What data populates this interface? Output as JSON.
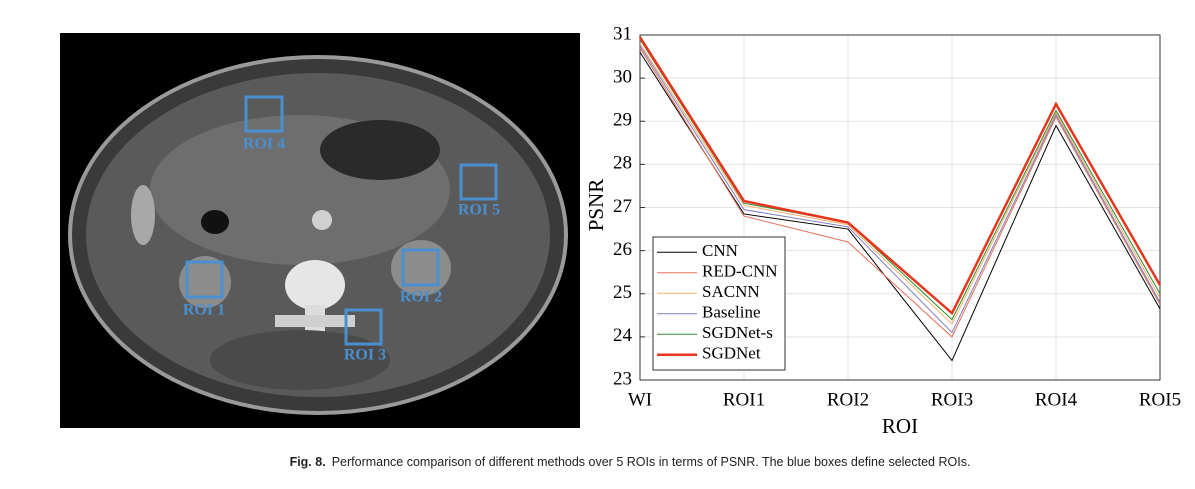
{
  "image": {
    "roi_labels": [
      "ROI 1",
      "ROI 2",
      "ROI 3",
      "ROI 4",
      "ROI 5"
    ]
  },
  "chart_data": {
    "type": "line",
    "xlabel": "ROI",
    "ylabel": "PSNR",
    "categories": [
      "WI",
      "ROI1",
      "ROI2",
      "ROI3",
      "ROI4",
      "ROI5"
    ],
    "series": [
      {
        "name": "CNN",
        "color": "#000000",
        "values": [
          30.6,
          26.85,
          26.5,
          23.45,
          28.9,
          24.65
        ]
      },
      {
        "name": "RED-CNN",
        "color": "#e8705a",
        "values": [
          30.7,
          26.8,
          26.2,
          24.0,
          29.1,
          24.75
        ]
      },
      {
        "name": "SACNN",
        "color": "#f5b06a",
        "values": [
          30.8,
          27.05,
          26.6,
          24.3,
          29.2,
          24.9
        ]
      },
      {
        "name": "Baseline",
        "color": "#7b7bc8",
        "values": [
          30.75,
          26.95,
          26.55,
          24.1,
          29.15,
          24.8
        ]
      },
      {
        "name": "SGDNet-s",
        "color": "#2e8b2e",
        "values": [
          30.9,
          27.1,
          26.65,
          24.4,
          29.25,
          25.0
        ]
      },
      {
        "name": "SGDNet",
        "color": "#e8361e",
        "values": [
          30.95,
          27.15,
          26.65,
          24.55,
          29.4,
          25.2
        ]
      }
    ],
    "ylim": [
      23,
      31
    ],
    "yticks": [
      23,
      24,
      25,
      26,
      27,
      28,
      29,
      30,
      31
    ],
    "grid": true,
    "legend": "lower left"
  },
  "caption": {
    "label": "Fig. 8.",
    "text": "Performance comparison of different methods over 5 ROIs in terms of PSNR. The blue boxes define selected ROIs."
  }
}
